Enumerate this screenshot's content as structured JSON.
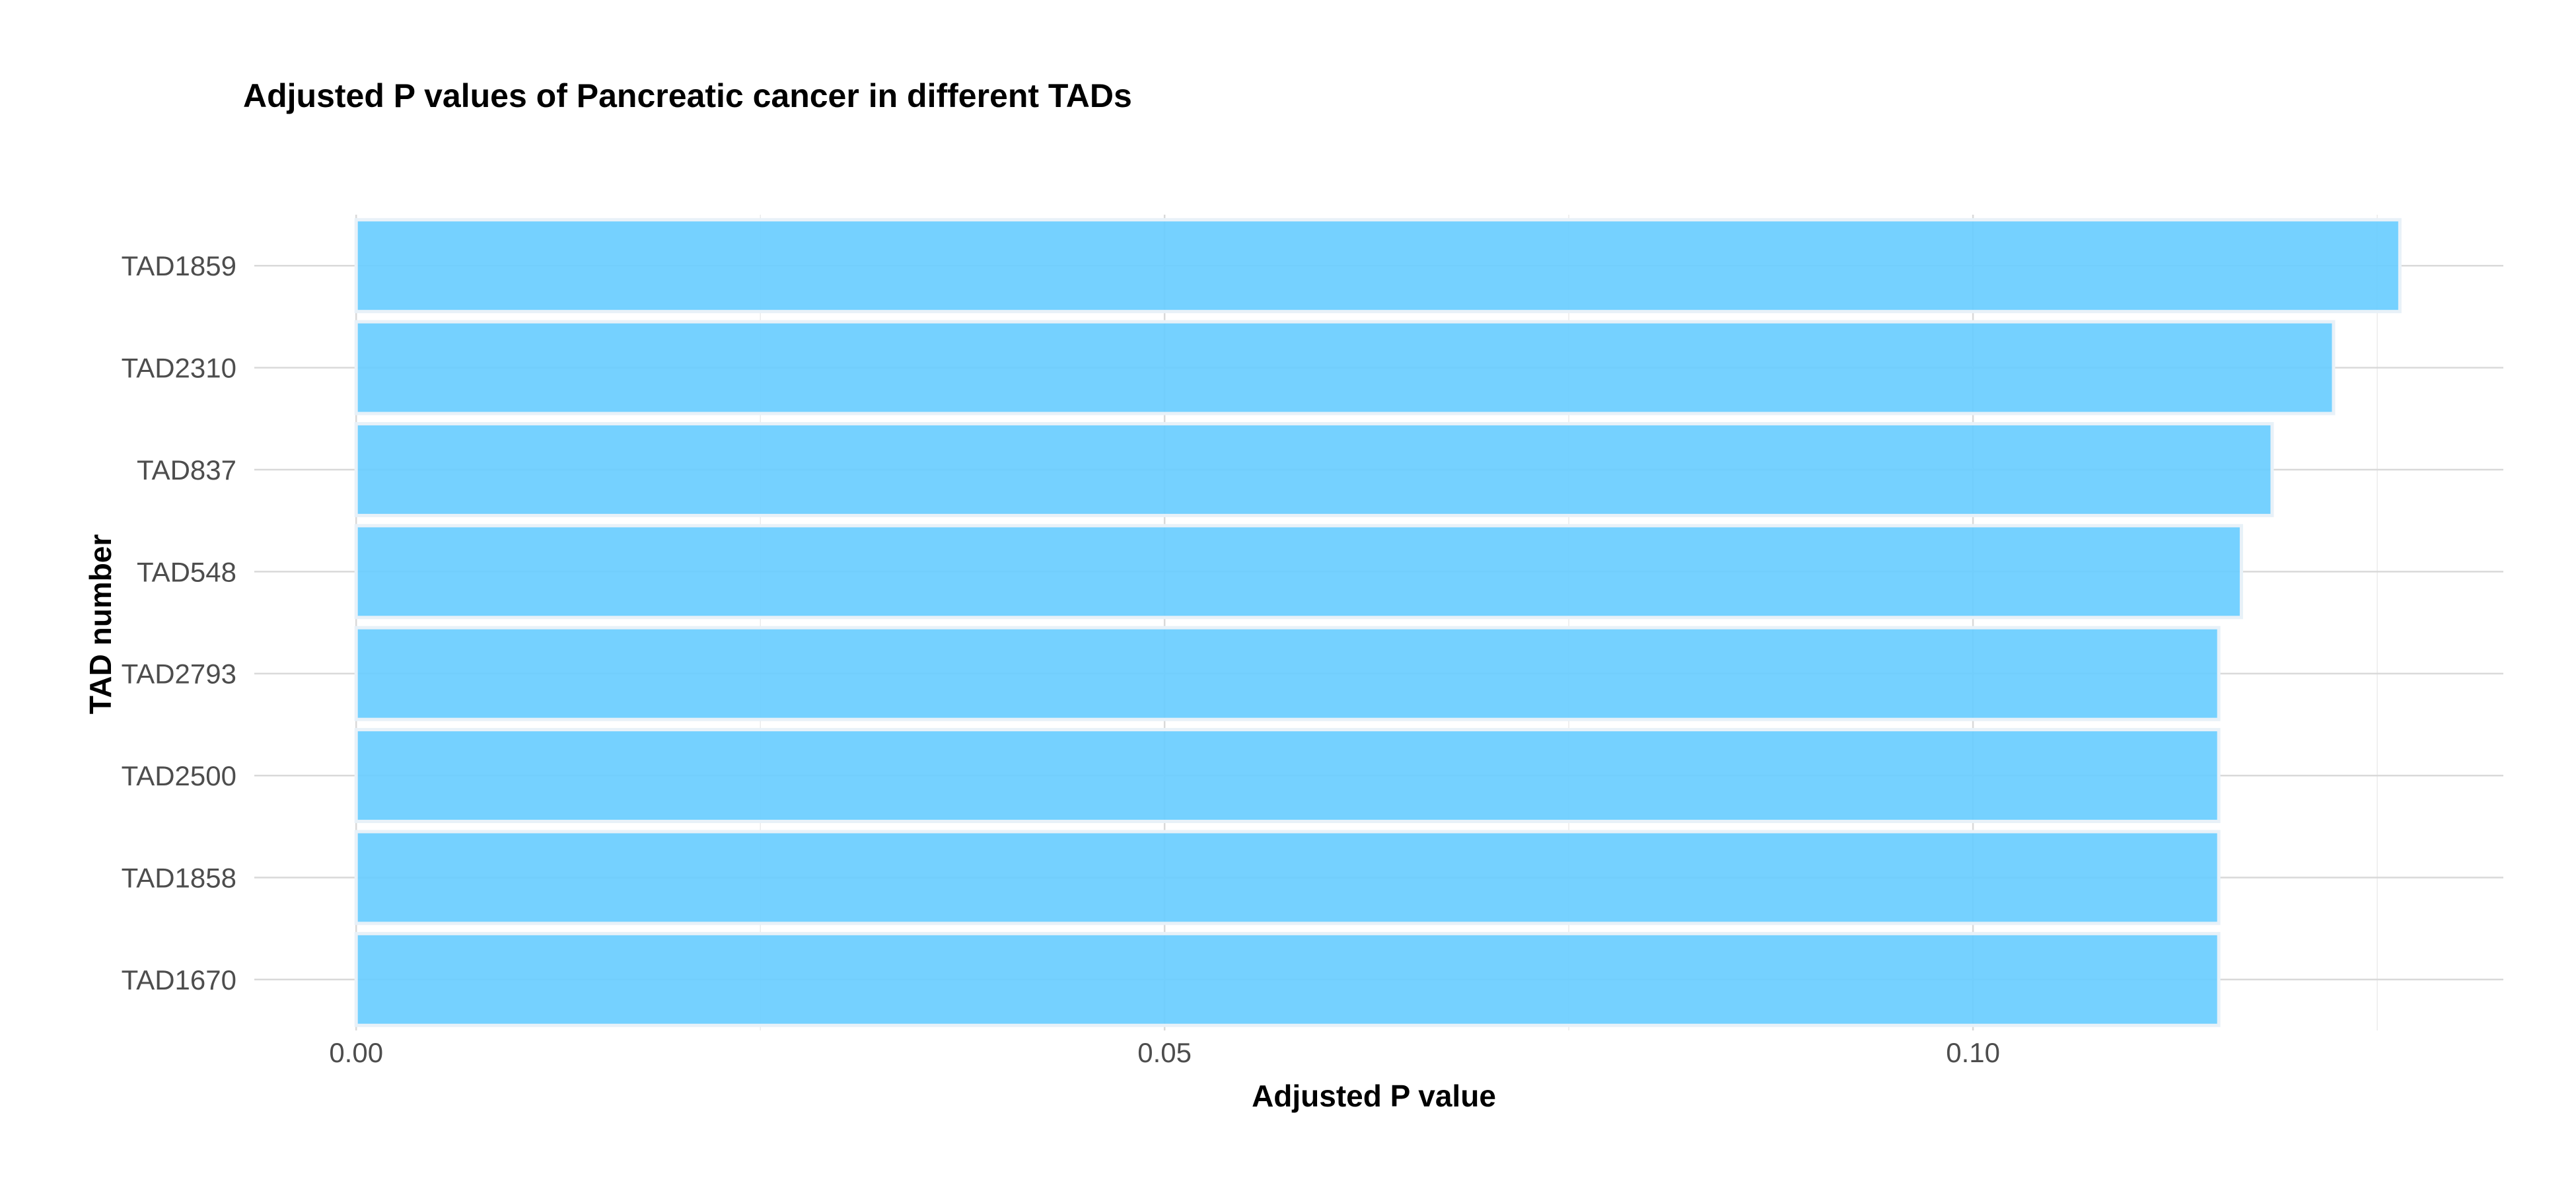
{
  "chart_data": {
    "type": "bar",
    "orientation": "horizontal",
    "title": "Adjusted P values of Pancreatic cancer in different TADs",
    "xlabel": "Adjusted P value",
    "ylabel": "TAD number",
    "categories": [
      "TAD1859",
      "TAD2310",
      "TAD837",
      "TAD548",
      "TAD2793",
      "TAD2500",
      "TAD1858",
      "TAD1670"
    ],
    "values": [
      0.1264,
      0.1223,
      0.1185,
      0.1166,
      0.1152,
      0.1152,
      0.1152,
      0.1152
    ],
    "x_ticks": [
      "0.00",
      "0.05",
      "0.10"
    ],
    "x_tick_values": [
      0,
      0.05,
      0.1
    ],
    "xlim": [
      -0.0063,
      0.1328
    ],
    "bar_color": "#66CCFF",
    "grid": true,
    "legend": "none"
  }
}
